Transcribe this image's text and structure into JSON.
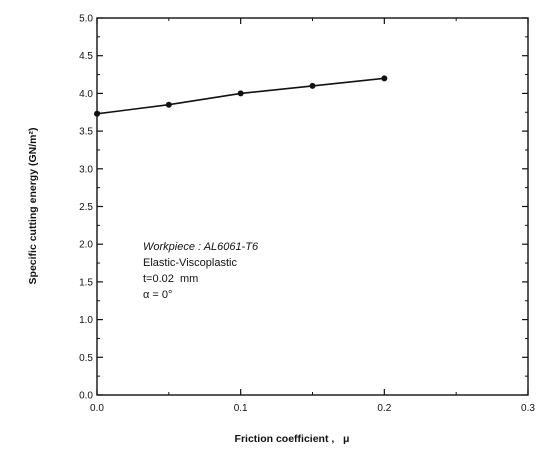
{
  "chart_data": {
    "type": "line",
    "title": "",
    "xlabel": "Friction coefficient ,   μ",
    "ylabel": "Specific cutting energy (GN/m²)",
    "xlim": [
      0.0,
      0.3
    ],
    "ylim": [
      0.0,
      5.0
    ],
    "xticks": [
      0.0,
      0.1,
      0.2,
      0.3
    ],
    "xtick_labels": [
      "0.0",
      "0.1",
      "0.2",
      "0.3"
    ],
    "yticks": [
      0.0,
      0.5,
      1.0,
      1.5,
      2.0,
      2.5,
      3.0,
      3.5,
      4.0,
      4.5,
      5.0
    ],
    "ytick_labels": [
      "0.0",
      "0.5",
      "1.0",
      "1.5",
      "2.0",
      "2.5",
      "3.0",
      "3.5",
      "4.0",
      "4.5",
      "5.0"
    ],
    "grid": false,
    "series": [
      {
        "x": [
          0.0,
          0.05,
          0.1,
          0.15,
          0.2
        ],
        "y": [
          3.73,
          3.85,
          4.0,
          4.1,
          4.2
        ]
      }
    ],
    "annotations": [
      "Workpiece : AL6061-T6",
      "Elastic-Viscoplastic",
      "t=0.02  mm",
      "α = 0°"
    ]
  }
}
